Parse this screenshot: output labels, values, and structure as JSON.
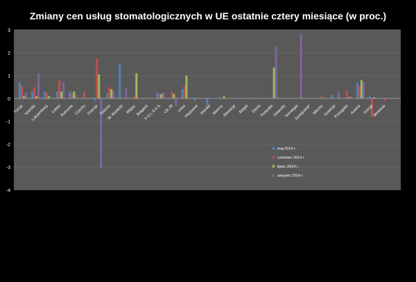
{
  "chart_data": {
    "type": "bar",
    "title": "Zmiany cen usług stomatologicznych w UE  ostatnie cztery miesiące (w proc.)",
    "xlabel": "",
    "ylabel": "",
    "ylim": [
      -4,
      3
    ],
    "yticks": [
      3,
      2,
      1,
      0,
      -1,
      -2,
      -3,
      -4
    ],
    "grid": true,
    "legend_position": "right",
    "categories": [
      "Turcja",
      "Islandia",
      "Luksemburg",
      "Łotwa",
      "Rumunia",
      "Czechy",
      "Francja",
      "Estonia",
      "W. Brytania",
      "Węgry",
      "Bułgaria",
      "P O L S K A",
      "UE 28",
      "Litwa",
      "Hiszpania",
      "Irlandia",
      "Niemcy",
      "Słowacja",
      "Belgia",
      "Dania",
      "Finlandia",
      "Holandia",
      "Norwegia",
      "Szwajcaria*",
      "Włochy",
      "Szwecja",
      "Portugalia",
      "Austria",
      "Grecja",
      "Słowenia"
    ],
    "series": [
      {
        "name": "maj 2014 r.",
        "color": "#4f81bd",
        "values": [
          0.7,
          0.3,
          0.3,
          0.3,
          0.3,
          0.0,
          -0.1,
          0.2,
          1.5,
          0.0,
          0.0,
          0.25,
          0.0,
          0.4,
          -0.1,
          -0.3,
          0.05,
          0.0,
          0.0,
          0.0,
          0.0,
          0.0,
          0.0,
          0.0,
          0.0,
          0.15,
          0.0,
          0.7,
          0.1,
          0.0
        ]
      },
      {
        "name": "czerwiec 2014 r.",
        "color": "#c0504d",
        "values": [
          0.55,
          0.5,
          0.25,
          0.8,
          0.2,
          0.3,
          1.75,
          0.5,
          0.0,
          0.1,
          0.05,
          0.2,
          0.3,
          0.55,
          0.0,
          0.0,
          0.0,
          0.0,
          0.0,
          0.0,
          0.0,
          0.0,
          0.0,
          0.0,
          0.1,
          0.0,
          0.35,
          0.55,
          -0.8,
          -0.1
        ]
      },
      {
        "name": "lipiec 2014 r.",
        "color": "#9bbb59",
        "values": [
          0.1,
          0.1,
          0.1,
          0.3,
          0.3,
          0.0,
          1.05,
          0.4,
          0.0,
          1.1,
          0.0,
          0.2,
          0.2,
          1.0,
          0.0,
          0.0,
          0.1,
          0.0,
          0.0,
          0.0,
          1.35,
          0.0,
          0.0,
          0.0,
          0.0,
          0.0,
          0.05,
          0.8,
          0.05,
          0.0
        ]
      },
      {
        "name": "sierpień 2014 r.",
        "color": "#8064a2",
        "values": [
          0.25,
          1.1,
          0.0,
          0.7,
          0.15,
          0.0,
          -3.05,
          0.3,
          0.45,
          0.0,
          0.0,
          0.25,
          -0.35,
          0.0,
          0.0,
          0.0,
          0.0,
          0.0,
          0.05,
          0.0,
          2.25,
          0.0,
          2.8,
          0.0,
          0.0,
          0.3,
          0.1,
          0.7,
          0.0,
          0.0
        ]
      }
    ]
  }
}
